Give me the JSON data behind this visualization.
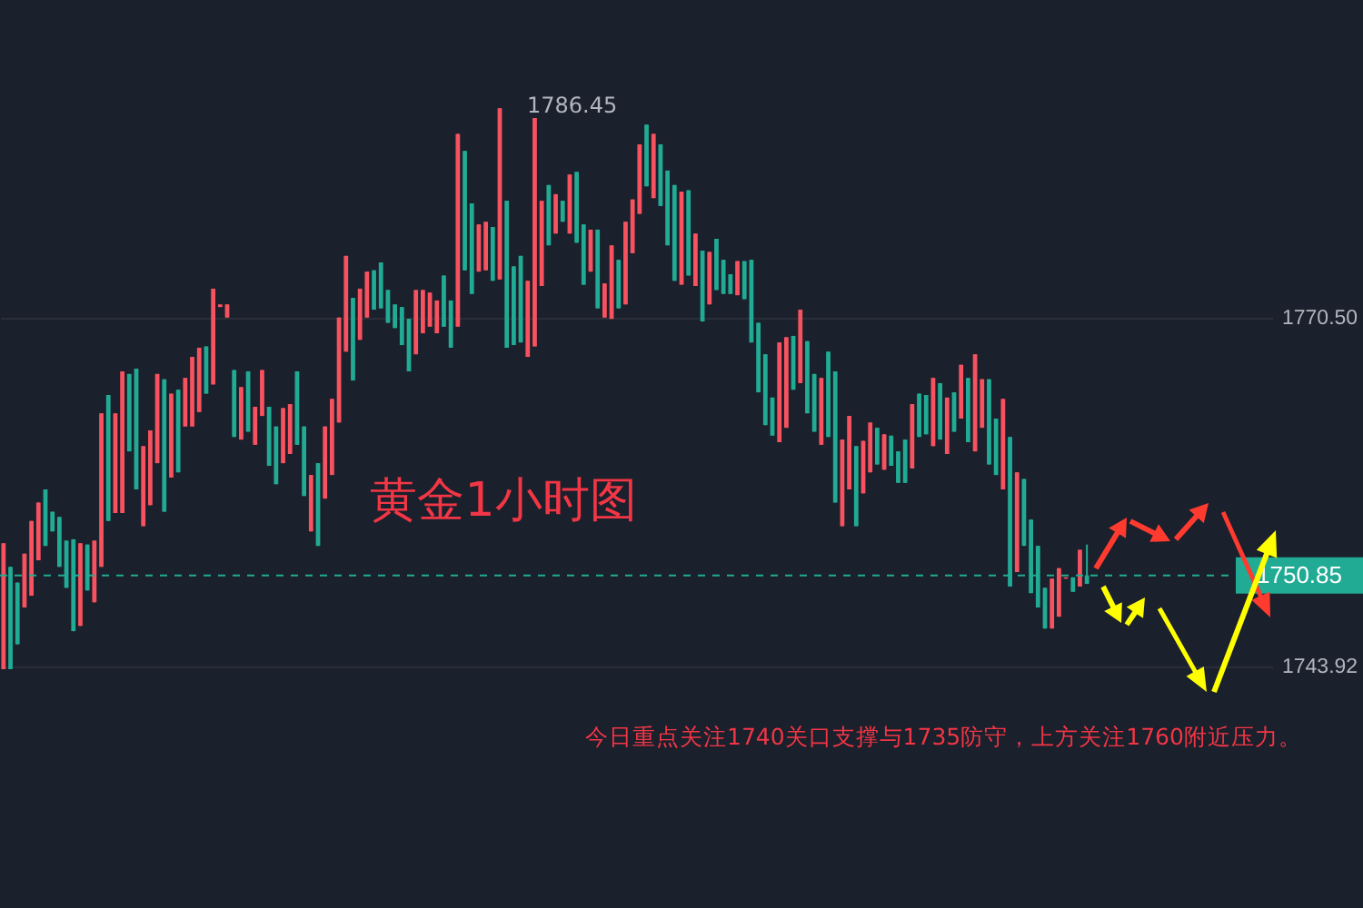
{
  "chart_data": {
    "type": "candlestick",
    "categories": [
      null,
      null,
      null,
      null,
      null,
      null,
      null,
      null,
      null,
      null,
      null,
      null,
      null,
      null,
      null,
      null,
      null,
      null,
      null,
      null,
      null,
      null,
      null,
      null,
      null,
      null,
      null,
      null,
      null,
      null,
      null,
      null,
      null,
      null,
      null,
      null,
      null,
      null,
      null,
      null,
      null,
      null,
      null,
      null,
      null,
      null,
      null,
      null,
      null,
      null,
      null,
      null,
      null,
      null,
      null,
      null,
      null,
      null,
      null,
      null,
      null,
      null,
      null,
      null,
      null,
      null,
      null,
      null,
      null,
      null,
      null,
      null,
      null,
      null,
      null,
      null,
      null,
      null,
      null,
      null,
      null,
      null,
      null,
      null,
      null,
      null,
      null,
      null,
      null,
      null,
      null,
      null,
      null,
      null,
      null,
      null,
      null,
      null,
      null,
      null,
      null,
      null,
      null,
      null,
      null,
      null,
      null,
      null,
      null,
      null,
      null,
      null,
      null,
      null,
      null,
      null,
      null,
      null,
      null,
      null,
      null,
      null,
      null,
      null,
      null,
      null,
      null,
      null,
      null,
      null,
      null,
      null,
      null,
      null,
      null,
      null,
      null,
      null,
      null,
      null,
      null,
      null,
      null,
      null,
      null,
      null,
      null,
      null,
      null,
      null,
      null,
      null,
      null,
      null,
      null,
      null,
      null,
      null,
      null,
      null,
      null,
      null,
      null,
      null,
      null,
      null,
      null,
      null,
      null,
      null,
      null,
      null,
      null,
      null,
      null,
      null,
      null,
      null,
      null,
      null,
      null,
      null
    ],
    "ohlc": [
      [
        1753.3,
        1753.3,
        1743.7,
        1743.7
      ],
      [
        1743.7,
        1751.5,
        1743.7,
        1751.5
      ],
      [
        1745.6,
        1750.3,
        1745.6,
        1750.3
      ],
      [
        1752.5,
        1752.5,
        1748.4,
        1748.4
      ],
      [
        1755.0,
        1755.0,
        1749.3,
        1749.3
      ],
      [
        1756.4,
        1756.4,
        1752.0,
        1752.0
      ],
      [
        1753.1,
        1757.4,
        1753.1,
        1757.4
      ],
      [
        1754.2,
        1755.7,
        1754.2,
        1755.7
      ],
      [
        1751.5,
        1755.3,
        1751.5,
        1755.3
      ],
      [
        1749.9,
        1753.5,
        1749.9,
        1753.5
      ],
      [
        1746.6,
        1753.6,
        1746.6,
        1753.6
      ],
      [
        1753.3,
        1753.3,
        1747.0,
        1747.0
      ],
      [
        1749.7,
        1753.2,
        1749.7,
        1753.2
      ],
      [
        1753.5,
        1753.5,
        1748.8,
        1748.8
      ],
      [
        1763.2,
        1763.2,
        1751.5,
        1751.5
      ],
      [
        1755.0,
        1764.6,
        1755.0,
        1764.6
      ],
      [
        1763.2,
        1763.2,
        1755.6,
        1755.6
      ],
      [
        1766.4,
        1766.4,
        1755.6,
        1755.6
      ],
      [
        1760.3,
        1766.2,
        1760.3,
        1766.2
      ],
      [
        1757.4,
        1766.6,
        1757.4,
        1766.6
      ],
      [
        1760.7,
        1760.7,
        1754.6,
        1754.6
      ],
      [
        1761.9,
        1761.9,
        1756.2,
        1756.2
      ],
      [
        1766.2,
        1766.2,
        1759.4,
        1759.4
      ],
      [
        1755.7,
        1765.8,
        1755.7,
        1765.8
      ],
      [
        1764.7,
        1764.7,
        1758.3,
        1758.3
      ],
      [
        1758.7,
        1765.0,
        1758.7,
        1765.0
      ],
      [
        1765.9,
        1765.9,
        1762.2,
        1762.2
      ],
      [
        1767.5,
        1767.5,
        1762.2,
        1762.2
      ],
      [
        1768.2,
        1768.2,
        1763.3,
        1763.3
      ],
      [
        1764.7,
        1768.3,
        1764.7,
        1768.3
      ],
      [
        1772.7,
        1772.7,
        1765.4,
        1765.4
      ],
      [
        1771.5,
        1771.5,
        1771.3,
        1771.3
      ],
      [
        1771.5,
        1771.5,
        1770.5,
        1770.5
      ],
      [
        1761.4,
        1766.5,
        1761.4,
        1766.5
      ],
      [
        1765.2,
        1765.2,
        1761.2,
        1761.2
      ],
      [
        1761.8,
        1766.4,
        1761.8,
        1766.4
      ],
      [
        1763.7,
        1763.7,
        1760.8,
        1760.8
      ],
      [
        1766.5,
        1766.5,
        1763.0,
        1763.0
      ],
      [
        1759.2,
        1763.7,
        1759.2,
        1763.7
      ],
      [
        1757.8,
        1762.2,
        1757.8,
        1762.2
      ],
      [
        1763.6,
        1763.6,
        1759.4,
        1759.4
      ],
      [
        1763.9,
        1763.9,
        1760.1,
        1760.1
      ],
      [
        1760.8,
        1766.4,
        1760.8,
        1766.4
      ],
      [
        1756.9,
        1762.2,
        1756.9,
        1762.2
      ],
      [
        1758.5,
        1758.5,
        1754.2,
        1754.2
      ],
      [
        1753.1,
        1759.4,
        1753.1,
        1759.4
      ],
      [
        1762.2,
        1762.2,
        1756.7,
        1756.7
      ],
      [
        1764.3,
        1764.3,
        1758.5,
        1758.5
      ],
      [
        1770.5,
        1770.5,
        1762.5,
        1762.5
      ],
      [
        1775.2,
        1775.2,
        1767.9,
        1767.9
      ],
      [
        1765.7,
        1772.0,
        1765.7,
        1772.0
      ],
      [
        1772.7,
        1772.7,
        1768.8,
        1768.8
      ],
      [
        1774.0,
        1774.0,
        1770.5,
        1770.5
      ],
      [
        1771.1,
        1774.1,
        1771.1,
        1774.1
      ],
      [
        1771.2,
        1774.7,
        1771.2,
        1774.7
      ],
      [
        1770.1,
        1772.6,
        1770.1,
        1772.6
      ],
      [
        1769.7,
        1771.5,
        1769.7,
        1771.5
      ],
      [
        1768.4,
        1771.3,
        1768.4,
        1771.3
      ],
      [
        1766.4,
        1770.4,
        1766.4,
        1770.4
      ],
      [
        1772.6,
        1772.6,
        1767.7,
        1767.7
      ],
      [
        1772.6,
        1772.6,
        1769.3,
        1769.3
      ],
      [
        1772.4,
        1772.4,
        1769.8,
        1769.8
      ],
      [
        1771.8,
        1771.8,
        1769.3,
        1769.3
      ],
      [
        1769.8,
        1773.7,
        1769.8,
        1773.7
      ],
      [
        1768.2,
        1771.8,
        1768.2,
        1771.8
      ],
      [
        1784.5,
        1784.5,
        1769.8,
        1769.8
      ],
      [
        1774.1,
        1783.2,
        1774.1,
        1783.2
      ],
      [
        1772.3,
        1779.2,
        1772.3,
        1779.2
      ],
      [
        1777.6,
        1777.6,
        1774.0,
        1774.0
      ],
      [
        1777.8,
        1777.8,
        1774.1,
        1774.1
      ],
      [
        1773.3,
        1777.4,
        1773.3,
        1777.4
      ],
      [
        1786.45,
        1786.45,
        1773.4,
        1773.4
      ],
      [
        1768.2,
        1779.4,
        1768.2,
        1779.4
      ],
      [
        1768.4,
        1774.4,
        1768.4,
        1774.4
      ],
      [
        1768.6,
        1775.2,
        1768.6,
        1775.2
      ],
      [
        1773.3,
        1773.3,
        1767.5,
        1767.5
      ],
      [
        1785.7,
        1785.7,
        1768.3,
        1768.3
      ],
      [
        1779.4,
        1779.4,
        1772.9,
        1772.9
      ],
      [
        1776.0,
        1780.6,
        1776.0,
        1780.6
      ],
      [
        1779.9,
        1779.9,
        1776.9,
        1776.9
      ],
      [
        1777.8,
        1779.4,
        1777.8,
        1779.4
      ],
      [
        1781.4,
        1781.4,
        1776.9,
        1776.9
      ],
      [
        1776.2,
        1781.6,
        1776.2,
        1781.6
      ],
      [
        1773.0,
        1777.6,
        1773.0,
        1777.6
      ],
      [
        1777.2,
        1777.2,
        1774.0,
        1774.0
      ],
      [
        1771.2,
        1777.2,
        1771.2,
        1777.2
      ],
      [
        1773.1,
        1773.1,
        1770.5,
        1770.5
      ],
      [
        1776.0,
        1776.0,
        1770.4,
        1770.4
      ],
      [
        1771.2,
        1774.9,
        1771.2,
        1774.9
      ],
      [
        1777.8,
        1777.8,
        1771.5,
        1771.5
      ],
      [
        1779.5,
        1779.5,
        1775.4,
        1775.4
      ],
      [
        1783.7,
        1783.7,
        1778.4,
        1778.4
      ],
      [
        1780.5,
        1785.2,
        1780.5,
        1785.2
      ],
      [
        1784.5,
        1784.5,
        1779.6,
        1779.6
      ],
      [
        1779.0,
        1783.7,
        1779.0,
        1783.7
      ],
      [
        1776.0,
        1781.7,
        1776.0,
        1781.7
      ],
      [
        1773.3,
        1780.6,
        1773.3,
        1780.6
      ],
      [
        1780.1,
        1780.1,
        1773.0,
        1773.0
      ],
      [
        1773.7,
        1780.2,
        1773.7,
        1780.2
      ],
      [
        1776.9,
        1776.9,
        1772.9,
        1772.9
      ],
      [
        1770.2,
        1775.6,
        1770.2,
        1775.6
      ],
      [
        1775.5,
        1775.5,
        1771.5,
        1771.5
      ],
      [
        1772.6,
        1776.5,
        1772.6,
        1776.5
      ],
      [
        1772.3,
        1774.9,
        1772.3,
        1774.9
      ],
      [
        1772.3,
        1773.8,
        1772.3,
        1773.8
      ],
      [
        1774.8,
        1774.8,
        1772.2,
        1772.2
      ],
      [
        1771.9,
        1774.8,
        1771.9,
        1774.8
      ],
      [
        1768.6,
        1774.9,
        1768.6,
        1774.9
      ],
      [
        1764.8,
        1770.1,
        1764.8,
        1770.1
      ],
      [
        1762.3,
        1767.7,
        1762.3,
        1767.7
      ],
      [
        1761.5,
        1764.4,
        1761.5,
        1764.4
      ],
      [
        1768.6,
        1768.6,
        1761.0,
        1761.0
      ],
      [
        1769.0,
        1769.0,
        1762.1,
        1762.1
      ],
      [
        1765.0,
        1769.1,
        1765.0,
        1769.1
      ],
      [
        1771.1,
        1771.1,
        1765.5,
        1765.5
      ],
      [
        1763.2,
        1768.7,
        1763.2,
        1768.7
      ],
      [
        1761.8,
        1766.2,
        1761.8,
        1766.2
      ],
      [
        1765.9,
        1765.9,
        1760.8,
        1760.8
      ],
      [
        1761.4,
        1767.9,
        1761.4,
        1767.9
      ],
      [
        1756.4,
        1766.4,
        1756.4,
        1766.4
      ],
      [
        1761.2,
        1761.2,
        1754.6,
        1754.6
      ],
      [
        1763.0,
        1763.0,
        1757.4,
        1757.4
      ],
      [
        1754.6,
        1760.7,
        1754.6,
        1760.7
      ],
      [
        1761.1,
        1761.1,
        1757.1,
        1757.1
      ],
      [
        1762.5,
        1762.5,
        1758.7,
        1758.7
      ],
      [
        1759.3,
        1762.1,
        1759.3,
        1762.1
      ],
      [
        1761.6,
        1761.6,
        1758.9,
        1758.9
      ],
      [
        1759.2,
        1761.5,
        1759.2,
        1761.5
      ],
      [
        1757.9,
        1760.3,
        1757.9,
        1760.3
      ],
      [
        1757.9,
        1761.2,
        1757.9,
        1761.2
      ],
      [
        1763.9,
        1763.9,
        1759.0,
        1759.0
      ],
      [
        1761.4,
        1764.7,
        1761.4,
        1764.7
      ],
      [
        1761.6,
        1764.6,
        1761.6,
        1764.6
      ],
      [
        1765.9,
        1765.9,
        1760.7,
        1760.7
      ],
      [
        1761.2,
        1765.5,
        1761.2,
        1765.5
      ],
      [
        1764.4,
        1764.4,
        1760.1,
        1760.1
      ],
      [
        1761.8,
        1764.8,
        1761.8,
        1764.8
      ],
      [
        1766.9,
        1766.9,
        1762.8,
        1762.8
      ],
      [
        1761.0,
        1765.9,
        1761.0,
        1765.9
      ],
      [
        1767.7,
        1767.7,
        1760.3,
        1760.3
      ],
      [
        1765.8,
        1765.8,
        1762.1,
        1762.1
      ],
      [
        1759.3,
        1765.8,
        1759.3,
        1765.8
      ],
      [
        1758.5,
        1762.8,
        1758.5,
        1762.8
      ],
      [
        1764.3,
        1764.3,
        1757.4,
        1757.4
      ],
      [
        1750.0,
        1761.4,
        1750.0,
        1761.4
      ],
      [
        1758.7,
        1758.7,
        1751.1,
        1751.1
      ],
      [
        1753.1,
        1758.2,
        1753.1,
        1758.2
      ],
      [
        1749.5,
        1755.1,
        1749.5,
        1755.1
      ],
      [
        1748.4,
        1753.1,
        1748.4,
        1753.1
      ],
      [
        1746.8,
        1749.9,
        1746.8,
        1749.9
      ],
      [
        1750.6,
        1750.6,
        1746.8,
        1746.8
      ],
      [
        1751.4,
        1751.4,
        1747.7,
        1747.7
      ],
      [
        1750.7,
        1750.7,
        1750.6,
        1750.6
      ],
      [
        1749.6,
        1750.7,
        1749.6,
        1750.7
      ],
      [
        1752.8,
        1752.8,
        1750.0,
        1750.0
      ],
      [
        1750.2,
        1753.2,
        1750.2,
        1750.85
      ],
      null,
      null,
      null,
      null,
      null,
      null,
      null,
      null,
      null,
      null,
      null,
      null,
      null,
      null,
      null,
      null,
      null,
      null,
      null,
      null,
      null,
      null,
      null,
      null,
      null,
      null
    ],
    "colors": [
      "#f7525f",
      "#22ab94",
      "#22ab94",
      "#f7525f",
      "#f7525f",
      "#f7525f",
      "#22ab94",
      "#22ab94",
      "#22ab94",
      "#22ab94",
      "#22ab94",
      "#f7525f",
      "#22ab94",
      "#f7525f",
      "#f7525f",
      "#22ab94",
      "#f7525f",
      "#f7525f",
      "#22ab94",
      "#22ab94",
      "#f7525f",
      "#f7525f",
      "#f7525f",
      "#22ab94",
      "#f7525f",
      "#22ab94",
      "#f7525f",
      "#f7525f",
      "#f7525f",
      "#22ab94",
      "#f7525f",
      "#f7525f",
      "#f7525f",
      "#22ab94",
      "#f7525f",
      "#22ab94",
      "#f7525f",
      "#f7525f",
      "#22ab94",
      "#22ab94",
      "#f7525f",
      "#f7525f",
      "#22ab94",
      "#22ab94",
      "#f7525f",
      "#22ab94",
      "#f7525f",
      "#f7525f",
      "#f7525f",
      "#f7525f",
      "#22ab94",
      "#f7525f",
      "#f7525f",
      "#22ab94",
      "#22ab94",
      "#22ab94",
      "#22ab94",
      "#22ab94",
      "#22ab94",
      "#f7525f",
      "#f7525f",
      "#f7525f",
      "#f7525f",
      "#22ab94",
      "#22ab94",
      "#f7525f",
      "#22ab94",
      "#22ab94",
      "#f7525f",
      "#f7525f",
      "#22ab94",
      "#f7525f",
      "#22ab94",
      "#22ab94",
      "#22ab94",
      "#f7525f",
      "#f7525f",
      "#f7525f",
      "#22ab94",
      "#f7525f",
      "#22ab94",
      "#f7525f",
      "#22ab94",
      "#22ab94",
      "#f7525f",
      "#22ab94",
      "#f7525f",
      "#f7525f",
      "#22ab94",
      "#f7525f",
      "#f7525f",
      "#f7525f",
      "#22ab94",
      "#f7525f",
      "#22ab94",
      "#22ab94",
      "#22ab94",
      "#f7525f",
      "#22ab94",
      "#f7525f",
      "#22ab94",
      "#f7525f",
      "#22ab94",
      "#22ab94",
      "#22ab94",
      "#f7525f",
      "#22ab94",
      "#22ab94",
      "#22ab94",
      "#22ab94",
      "#22ab94",
      "#f7525f",
      "#f7525f",
      "#22ab94",
      "#f7525f",
      "#22ab94",
      "#22ab94",
      "#f7525f",
      "#22ab94",
      "#22ab94",
      "#f7525f",
      "#f7525f",
      "#22ab94",
      "#f7525f",
      "#f7525f",
      "#22ab94",
      "#f7525f",
      "#22ab94",
      "#22ab94",
      "#22ab94",
      "#f7525f",
      "#22ab94",
      "#22ab94",
      "#f7525f",
      "#22ab94",
      "#f7525f",
      "#22ab94",
      "#f7525f",
      "#22ab94",
      "#f7525f",
      "#f7525f",
      "#22ab94",
      "#22ab94",
      "#f7525f",
      "#22ab94",
      "#f7525f",
      "#22ab94",
      "#22ab94",
      "#22ab94",
      "#22ab94",
      "#f7525f",
      "#f7525f",
      "#f7525f",
      "#22ab94",
      "#f7525f",
      "#22ab94",
      null,
      null,
      null,
      null,
      null,
      null,
      null,
      null,
      null,
      null,
      null,
      null,
      null,
      null,
      null,
      null,
      null,
      null,
      null,
      null,
      null,
      null,
      null,
      null,
      null,
      null
    ],
    "ylim": [
      1725.5,
      1794.7
    ],
    "yticks": [
      {
        "value": 1770.5,
        "label": "1770.50"
      },
      1743.92
    ],
    "grid": "y",
    "tick_labels": "y",
    "ref_lines": [
      {
        "axis": "y",
        "value": 1750.85,
        "label": "1750.85",
        "color": "#22ab94",
        "line_style": "dashed"
      }
    ],
    "annotations": [
      "1786.45",
      "黄金1小时图",
      "今日重点关注1740关口支撑与1735防守，上方关注1760附近压力。"
    ]
  }
}
